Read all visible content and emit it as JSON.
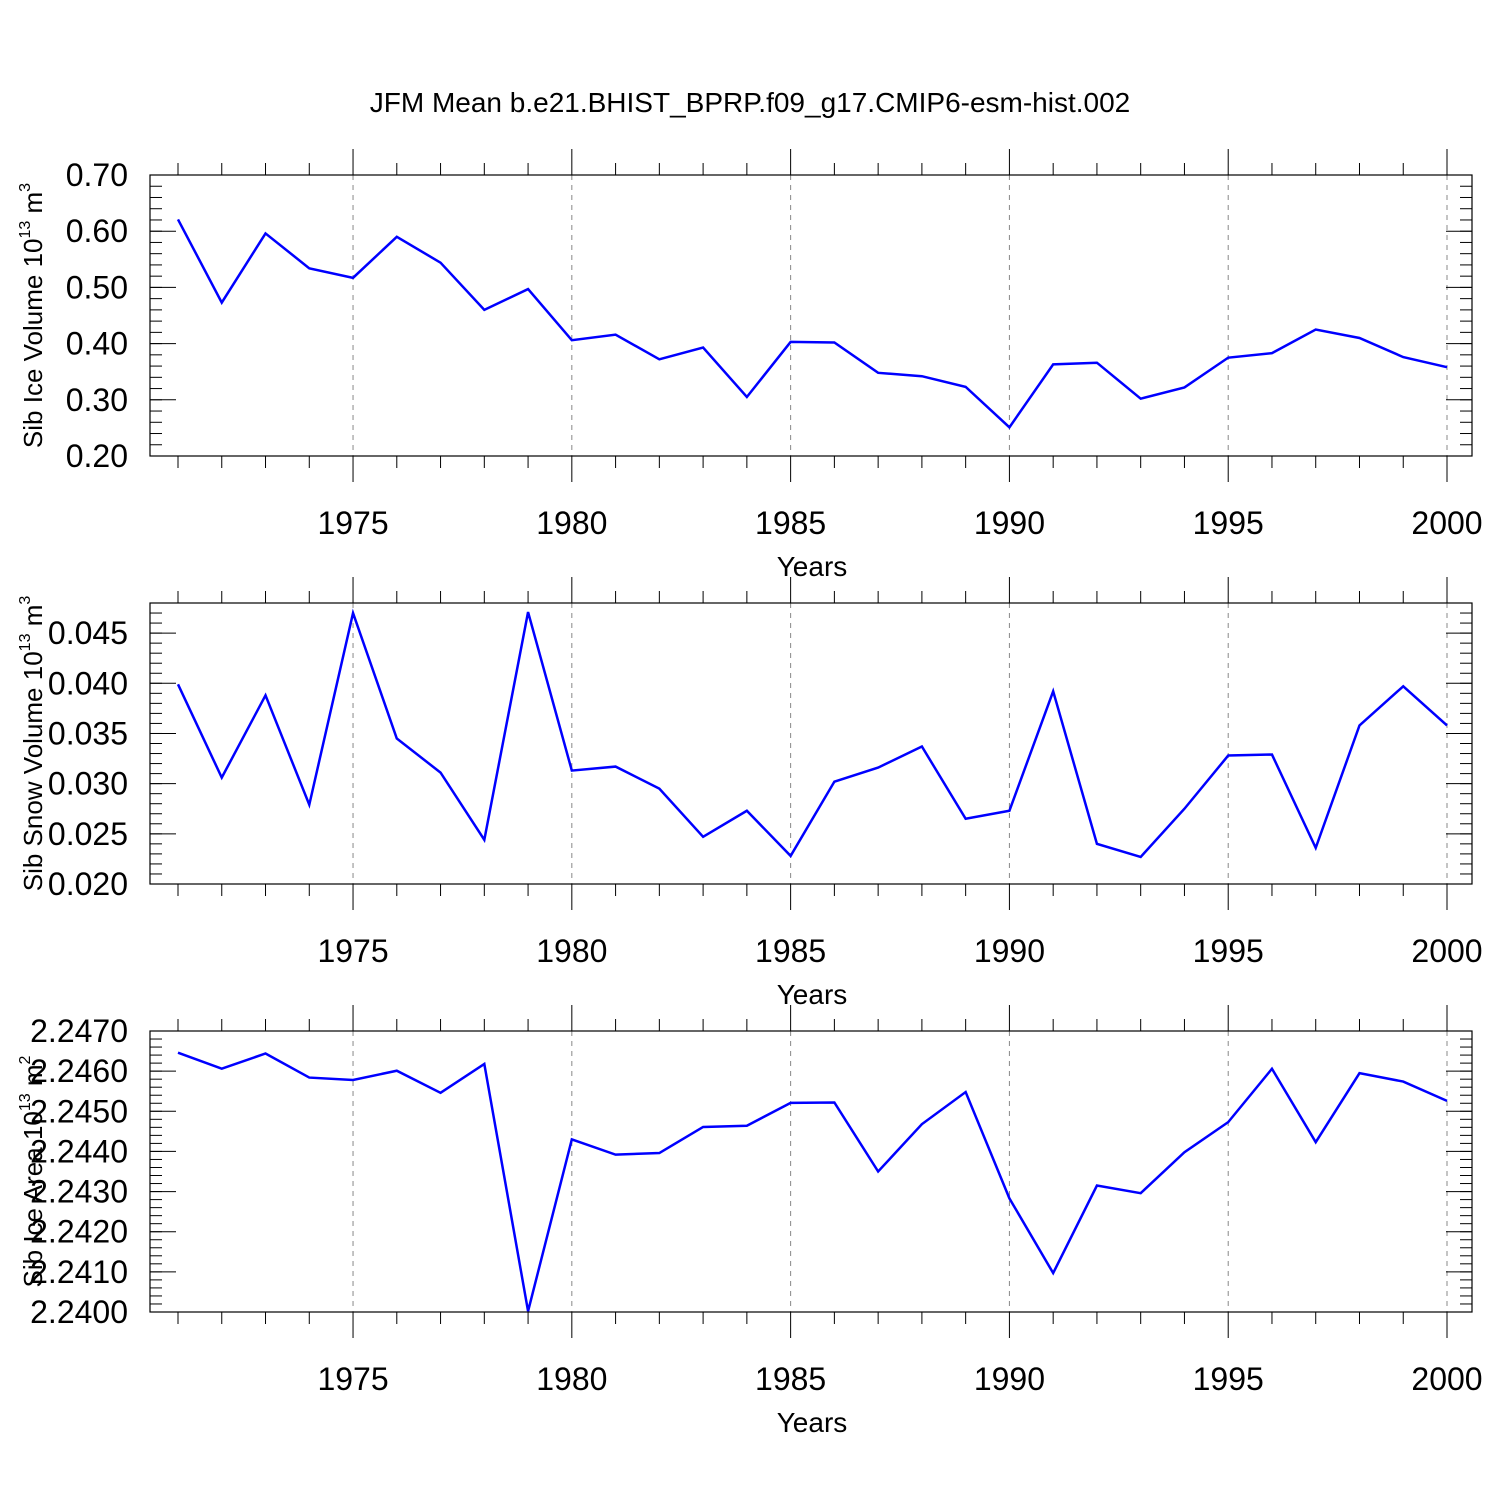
{
  "title": "JFM Mean b.e21.BHIST_BPRP.f09_g17.CMIP6-esm-hist.002",
  "chart_data": [
    {
      "type": "line",
      "ylabel_main": "Sib Ice Volume 10",
      "ylabel_exp": "13",
      "ylabel_unit": "m",
      "ylabel_unit_exp": "3",
      "xlabel": "Years",
      "xlim": [
        1971,
        2000
      ],
      "ylim": [
        0.2,
        0.7
      ],
      "xticks": [
        "1975",
        "1980",
        "1985",
        "1990",
        "1995",
        "2000"
      ],
      "yticks": [
        "0.20",
        "0.30",
        "0.40",
        "0.50",
        "0.60",
        "0.70"
      ],
      "series": [
        {
          "name": "Sib Ice Volume",
          "color": "#0000ff",
          "x": [
            1971,
            1972,
            1973,
            1974,
            1975,
            1976,
            1977,
            1978,
            1979,
            1980,
            1981,
            1982,
            1983,
            1984,
            1985,
            1986,
            1987,
            1988,
            1989,
            1990,
            1991,
            1992,
            1993,
            1994,
            1995,
            1996,
            1997,
            1998,
            1999,
            2000
          ],
          "values": [
            0.621,
            0.473,
            0.596,
            0.534,
            0.517,
            0.59,
            0.544,
            0.46,
            0.497,
            0.406,
            0.416,
            0.372,
            0.393,
            0.305,
            0.403,
            0.402,
            0.348,
            0.342,
            0.323,
            0.251,
            0.363,
            0.366,
            0.302,
            0.322,
            0.375,
            0.383,
            0.425,
            0.41,
            0.376,
            0.358
          ]
        }
      ]
    },
    {
      "type": "line",
      "ylabel_main": "Sib Snow Volume 10",
      "ylabel_exp": "13",
      "ylabel_unit": "m",
      "ylabel_unit_exp": "3",
      "xlabel": "Years",
      "xlim": [
        1971,
        2000
      ],
      "ylim": [
        0.02,
        0.048
      ],
      "xticks": [
        "1975",
        "1980",
        "1985",
        "1990",
        "1995",
        "2000"
      ],
      "yticks": [
        "0.020",
        "0.025",
        "0.030",
        "0.035",
        "0.040",
        "0.045"
      ],
      "series": [
        {
          "name": "Sib Snow Volume",
          "color": "#0000ff",
          "x": [
            1971,
            1972,
            1973,
            1974,
            1975,
            1976,
            1977,
            1978,
            1979,
            1980,
            1981,
            1982,
            1983,
            1984,
            1985,
            1986,
            1987,
            1988,
            1989,
            1990,
            1991,
            1992,
            1993,
            1994,
            1995,
            1996,
            1997,
            1998,
            1999,
            2000
          ],
          "values": [
            0.0399,
            0.0306,
            0.0388,
            0.0279,
            0.047,
            0.0345,
            0.0311,
            0.0244,
            0.0471,
            0.0313,
            0.0317,
            0.0295,
            0.0247,
            0.0273,
            0.0228,
            0.0302,
            0.0316,
            0.0337,
            0.0265,
            0.0273,
            0.0392,
            0.024,
            0.0227,
            0.0275,
            0.0328,
            0.0329,
            0.0236,
            0.0358,
            0.0397,
            0.0358
          ]
        }
      ]
    },
    {
      "type": "line",
      "ylabel_main": "Sib Ice Area 10",
      "ylabel_exp": "13",
      "ylabel_unit": "m",
      "ylabel_unit_exp": "2",
      "xlabel": "Years",
      "xlim": [
        1971,
        2000
      ],
      "ylim": [
        2.24,
        2.247
      ],
      "xticks": [
        "1975",
        "1980",
        "1985",
        "1990",
        "1995",
        "2000"
      ],
      "yticks": [
        "2.2400",
        "2.2410",
        "2.2420",
        "2.2430",
        "2.2440",
        "2.2450",
        "2.2460",
        "2.2470"
      ],
      "series": [
        {
          "name": "Sib Ice Area",
          "color": "#0000ff",
          "x": [
            1971,
            1972,
            1973,
            1974,
            1975,
            1976,
            1977,
            1978,
            1979,
            1980,
            1981,
            1982,
            1983,
            1984,
            1985,
            1986,
            1987,
            1988,
            1989,
            1990,
            1991,
            1992,
            1993,
            1994,
            1995,
            1996,
            1997,
            1998,
            1999,
            2000
          ],
          "values": [
            2.24646,
            2.24606,
            2.24644,
            2.24584,
            2.24578,
            2.24601,
            2.24546,
            2.24618,
            2.24002,
            2.2443,
            2.24392,
            2.24396,
            2.24461,
            2.24464,
            2.24521,
            2.24522,
            2.2435,
            2.24468,
            2.24548,
            2.24283,
            2.24097,
            2.24315,
            2.24296,
            2.24398,
            2.24473,
            2.24606,
            2.24423,
            2.24595,
            2.24574,
            2.24526
          ]
        }
      ]
    }
  ]
}
